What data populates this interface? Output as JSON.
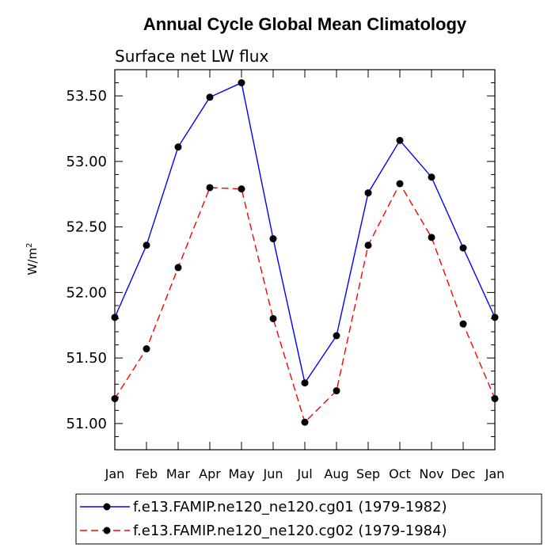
{
  "chart_data": {
    "type": "line",
    "title": "Annual Cycle Global Mean Climatology",
    "subtitle": "Surface net LW flux",
    "xlabel": "",
    "ylabel": "W/m",
    "ylabel_superscript": "2",
    "categories": [
      "Jan",
      "Feb",
      "Mar",
      "Apr",
      "May",
      "Jun",
      "Jul",
      "Aug",
      "Sep",
      "Oct",
      "Nov",
      "Dec",
      "Jan"
    ],
    "ylim": [
      50.8,
      53.7
    ],
    "yticks": [
      51.0,
      51.5,
      52.0,
      52.5,
      53.0,
      53.5
    ],
    "ytick_labels": [
      "51.00",
      "51.50",
      "52.00",
      "52.50",
      "53.00",
      "53.50"
    ],
    "legend_position": "bottom",
    "series": [
      {
        "name": "f.e13.FAMIP.ne120_ne120.cg01 (1979-1982)",
        "color": "#0000ff",
        "dash": "solid",
        "values": [
          51.81,
          52.36,
          53.11,
          53.49,
          53.6,
          52.41,
          51.31,
          51.67,
          52.76,
          53.16,
          52.88,
          52.34,
          51.81
        ]
      },
      {
        "name": "f.e13.FAMIP.ne120_ne120.cg02 (1979-1984)",
        "color": "#ff0000",
        "dash": "dashed",
        "values": [
          51.19,
          51.57,
          52.19,
          52.8,
          52.79,
          51.8,
          51.01,
          51.25,
          52.36,
          52.83,
          52.42,
          51.76,
          51.19
        ]
      }
    ]
  }
}
